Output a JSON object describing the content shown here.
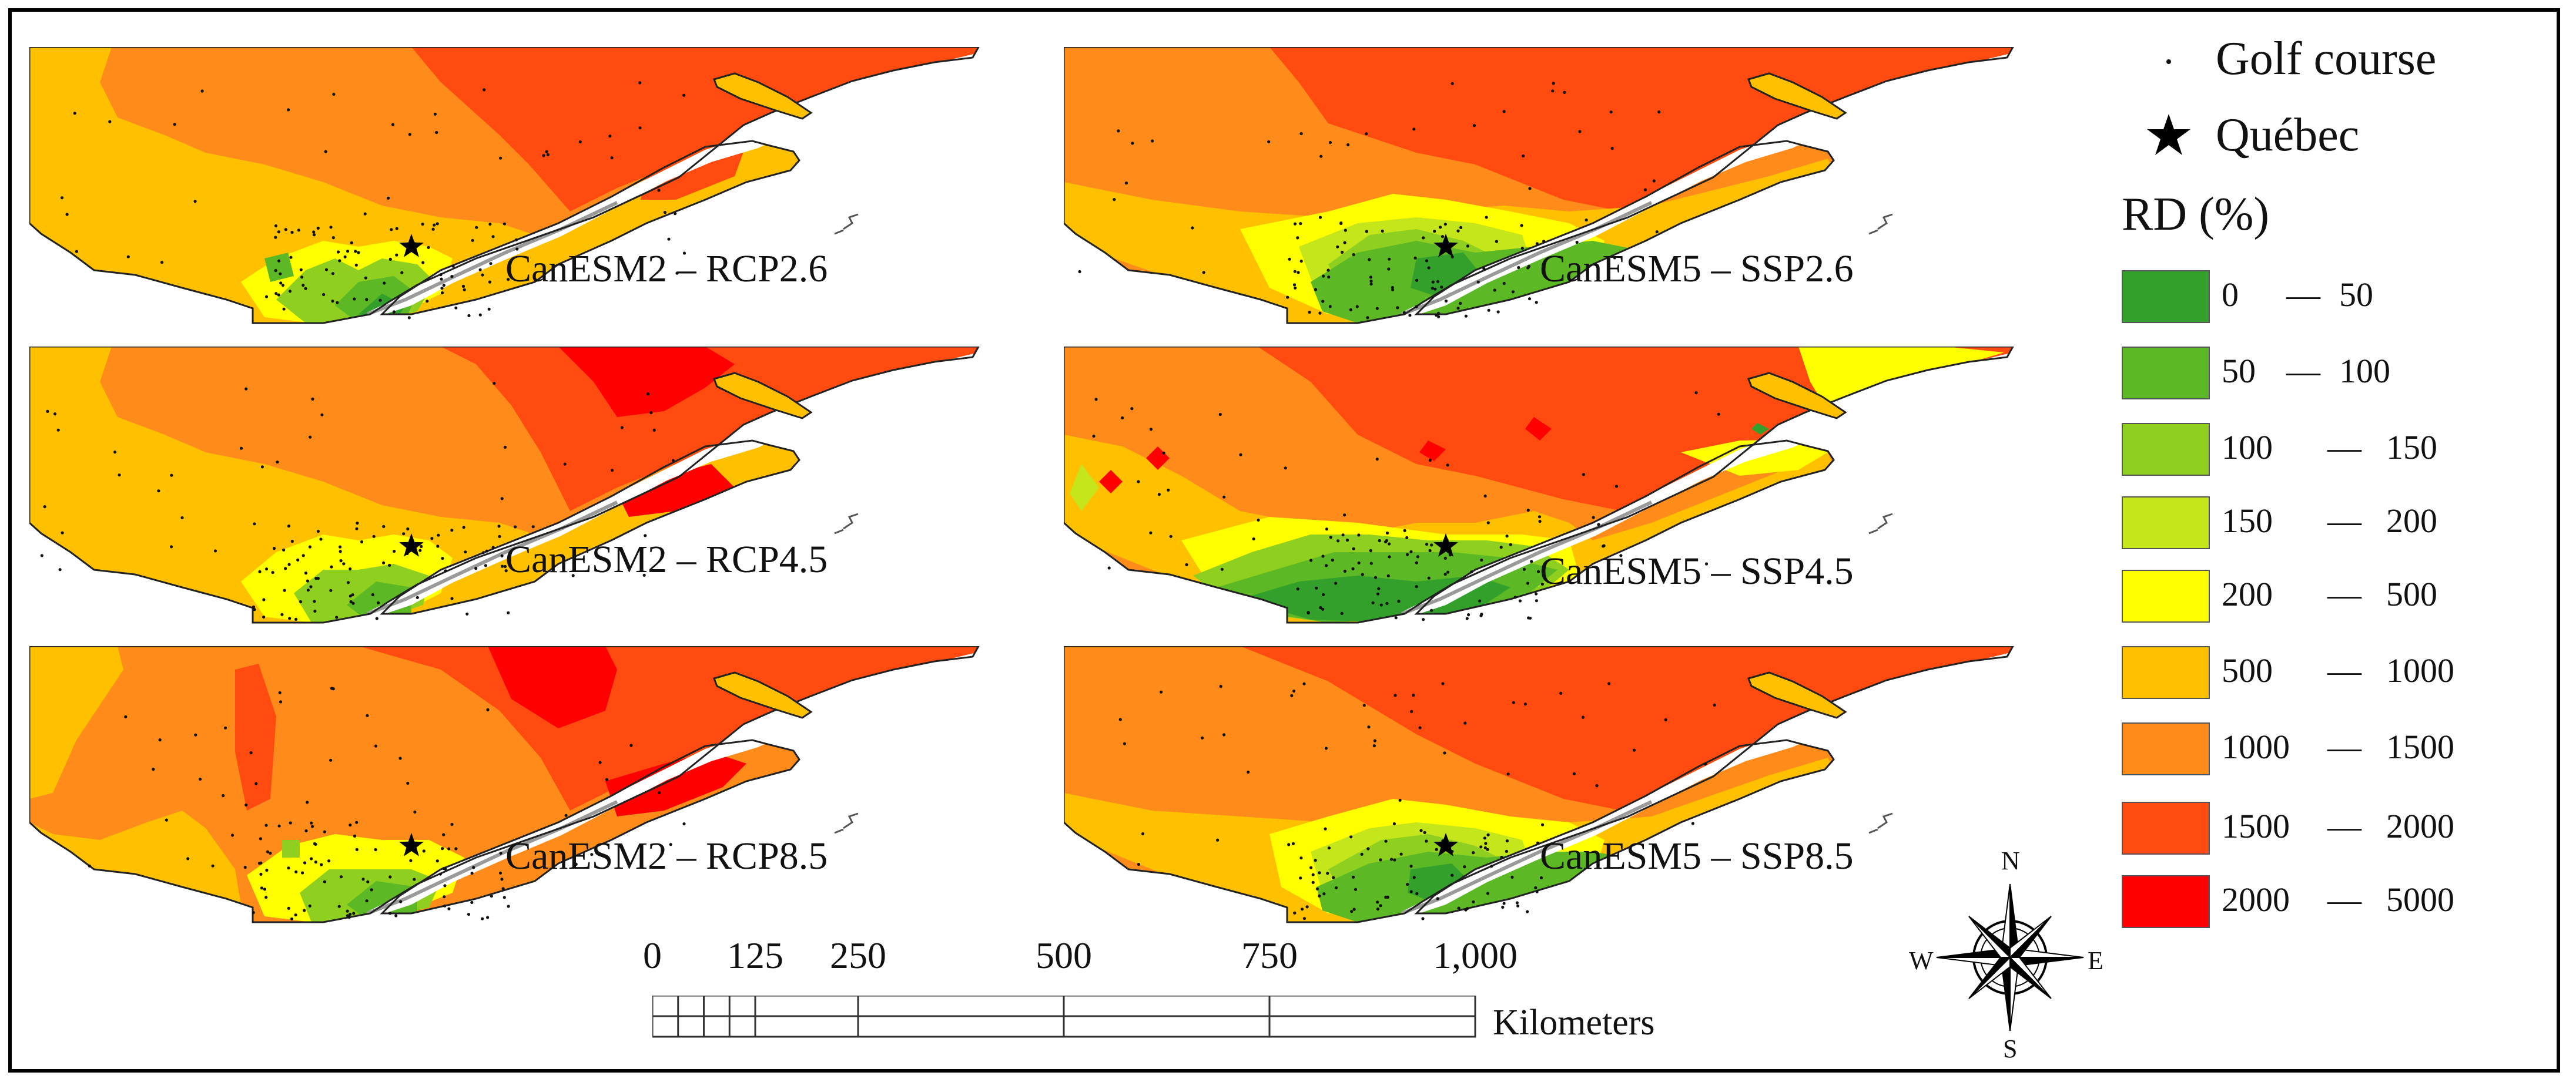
{
  "panels": [
    {
      "label": "CanESM2 – RCP2.6",
      "scheme": "a"
    },
    {
      "label": "CanESM5 – SSP2.6",
      "scheme": "b"
    },
    {
      "label": "CanESM2 – RCP4.5",
      "scheme": "c"
    },
    {
      "label": "CanESM5 – SSP4.5",
      "scheme": "d"
    },
    {
      "label": "CanESM2 – RCP8.5",
      "scheme": "e"
    },
    {
      "label": "CanESM5 – SSP8.5",
      "scheme": "f"
    }
  ],
  "legend": {
    "golf_label": "Golf course",
    "city_label": "Québec",
    "title": "RD (%)",
    "classes": [
      {
        "lo": "0",
        "hi": "50",
        "color": "#33a02c"
      },
      {
        "lo": "50",
        "hi": "100",
        "color": "#5cb824"
      },
      {
        "lo": "100",
        "hi": "150",
        "color": "#8fcf1f"
      },
      {
        "lo": "150",
        "hi": "200",
        "color": "#c4e61a"
      },
      {
        "lo": "200",
        "hi": "500",
        "color": "#ffff00"
      },
      {
        "lo": "500",
        "hi": "1000",
        "color": "#ffc000"
      },
      {
        "lo": "1000",
        "hi": "1500",
        "color": "#ff8c1a"
      },
      {
        "lo": "1500",
        "hi": "2000",
        "color": "#ff4a10"
      },
      {
        "lo": "2000",
        "hi": "5000",
        "color": "#ff0000"
      }
    ]
  },
  "scale": {
    "ticks": [
      "0",
      "125",
      "250",
      "500",
      "750",
      "1,000"
    ],
    "tick_values": [
      0,
      125,
      250,
      500,
      750,
      1000
    ],
    "unit": "Kilometers"
  },
  "compass": {
    "n": "N",
    "s": "S",
    "e": "E",
    "w": "W"
  }
}
